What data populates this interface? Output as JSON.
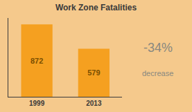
{
  "chart_data": {
    "type": "bar",
    "title": "Work Zone Fatalities",
    "categories": [
      "1999",
      "2013"
    ],
    "values": [
      872,
      579
    ],
    "color": "#F5A020",
    "ylim": [
      0,
      950
    ],
    "yticks": [],
    "grid": false,
    "data_labels": true,
    "tick_labels": "x",
    "annotations": [
      "-34%",
      "decrease"
    ]
  }
}
